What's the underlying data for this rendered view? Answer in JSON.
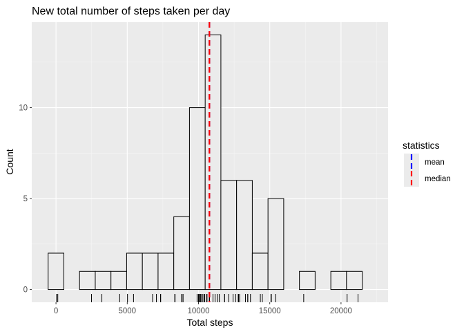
{
  "chart_data": {
    "type": "bar",
    "title": "New total number of steps taken per day",
    "xlabel": "Total steps",
    "ylabel": "Count",
    "xlim": [
      -1700,
      23300
    ],
    "ylim": [
      -0.7,
      14.7
    ],
    "x_ticks": [
      0,
      5000,
      10000,
      15000,
      20000
    ],
    "x_tick_labels": [
      "0",
      "5000",
      "10000",
      "15000",
      "20000"
    ],
    "y_ticks": [
      0,
      5,
      10
    ],
    "y_tick_labels": [
      "0",
      "5",
      "10"
    ],
    "bin_width": 1102,
    "bins": [
      {
        "x_start": -551,
        "x_end": 551,
        "count": 2
      },
      {
        "x_start": 551,
        "x_end": 1653,
        "count": 0
      },
      {
        "x_start": 1653,
        "x_end": 2755,
        "count": 1
      },
      {
        "x_start": 2755,
        "x_end": 3857,
        "count": 1
      },
      {
        "x_start": 3857,
        "x_end": 4959,
        "count": 1
      },
      {
        "x_start": 4959,
        "x_end": 6061,
        "count": 2
      },
      {
        "x_start": 6061,
        "x_end": 7163,
        "count": 2
      },
      {
        "x_start": 7163,
        "x_end": 8265,
        "count": 2
      },
      {
        "x_start": 8265,
        "x_end": 9367,
        "count": 4
      },
      {
        "x_start": 9367,
        "x_end": 10469,
        "count": 10
      },
      {
        "x_start": 10469,
        "x_end": 11571,
        "count": 14
      },
      {
        "x_start": 11571,
        "x_end": 12673,
        "count": 6
      },
      {
        "x_start": 12673,
        "x_end": 13775,
        "count": 6
      },
      {
        "x_start": 13775,
        "x_end": 14877,
        "count": 2
      },
      {
        "x_start": 14877,
        "x_end": 15979,
        "count": 5
      },
      {
        "x_start": 15979,
        "x_end": 17081,
        "count": 0
      },
      {
        "x_start": 17081,
        "x_end": 18183,
        "count": 1
      },
      {
        "x_start": 18183,
        "x_end": 19285,
        "count": 0
      },
      {
        "x_start": 19285,
        "x_end": 20387,
        "count": 1
      },
      {
        "x_start": 20387,
        "x_end": 21489,
        "count": 1
      }
    ],
    "rug_values": [
      41,
      126,
      2492,
      3219,
      4472,
      5018,
      5441,
      6778,
      7047,
      7336,
      7347,
      8334,
      8355,
      8821,
      8841,
      8918,
      9900,
      10000,
      10056,
      10119,
      10139,
      10183,
      10304,
      10395,
      10439,
      10571,
      10600,
      10765,
      10766,
      10766,
      10766,
      10766,
      10766,
      10766,
      10766,
      10766,
      11015,
      11162,
      11352,
      11458,
      11829,
      11834,
      12116,
      12426,
      12608,
      12787,
      12811,
      12883,
      13294,
      13452,
      13460,
      13646,
      14339,
      14478,
      15084,
      15098,
      15110,
      15414,
      17382,
      20427,
      21194
    ],
    "statistics": [
      {
        "name": "mean",
        "value": 10766.19,
        "color": "#0000ff"
      },
      {
        "name": "median",
        "value": 10766.19,
        "color": "#ff0000"
      }
    ],
    "legend_title": "statistics",
    "legend_position": "right",
    "grid": true,
    "colors": {
      "panel_background": "#ebebeb",
      "grid_major": "#ffffff",
      "bar_fill": "#ebebeb",
      "bar_stroke": "#000000"
    }
  }
}
